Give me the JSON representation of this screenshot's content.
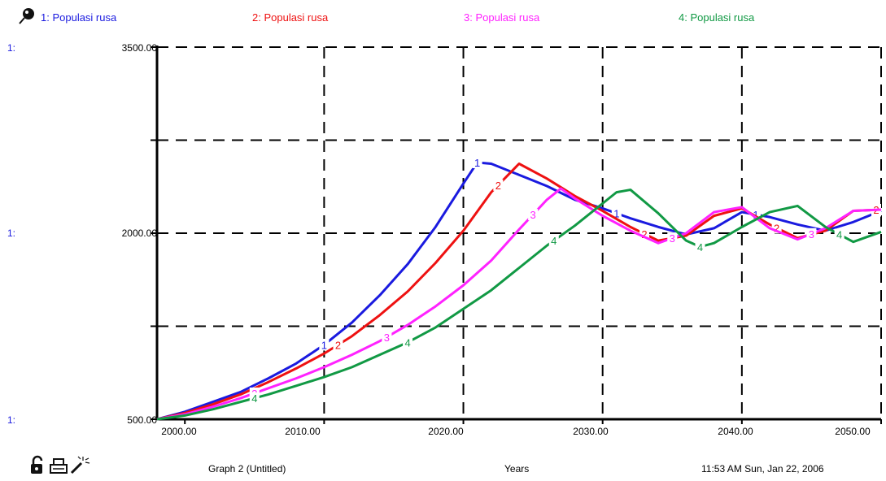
{
  "legend": [
    {
      "label": "1: Populasi rusa",
      "color": "#1a1adf"
    },
    {
      "label": "2: Populasi rusa",
      "color": "#ee1111"
    },
    {
      "label": "3: Populasi rusa",
      "color": "#ff22ff"
    },
    {
      "label": "4: Populasi rusa",
      "color": "#119944"
    }
  ],
  "axis_prefix": "1:",
  "footer": {
    "graph_title": "Graph 2 (Untitled)",
    "x_unit": "Years",
    "timestamp": "11:53 AM   Sun, Jan 22, 2006"
  },
  "icons": [
    "pushpin-icon",
    "lock-icon",
    "print-icon",
    "magic-wand-icon"
  ],
  "chart_data": {
    "type": "line",
    "xlabel": "Years",
    "ylim": [
      500,
      3500
    ],
    "xlim": [
      1998,
      2050
    ],
    "y_ticks": [
      500,
      1250,
      2000,
      2750,
      3500
    ],
    "y_tick_labels": [
      "500.00",
      "",
      "2000.00",
      "",
      "3500.00"
    ],
    "x_ticks": [
      2000,
      2010,
      2020,
      2030,
      2040,
      2050
    ],
    "x_tick_labels": [
      "2000.00",
      "2010.00",
      "2020.00",
      "2030.00",
      "2040.00",
      "2050.00"
    ],
    "grid": true,
    "series": [
      {
        "name": "1: Populasi rusa",
        "marker": "1",
        "color": "#1a1adf",
        "x": [
          1998,
          2000,
          2002,
          2004,
          2006,
          2008,
          2010,
          2012,
          2014,
          2016,
          2018,
          2020,
          2021,
          2022,
          2024,
          2026,
          2028,
          2030,
          2032,
          2034,
          2036,
          2038,
          2040,
          2042,
          2044,
          2046,
          2048,
          2050
        ],
        "y": [
          500,
          560,
          640,
          720,
          830,
          950,
          1100,
          1280,
          1500,
          1750,
          2050,
          2400,
          2570,
          2560,
          2470,
          2380,
          2270,
          2200,
          2120,
          2050,
          1990,
          2040,
          2170,
          2130,
          2070,
          2020,
          2090,
          2180
        ],
        "marker_x": [
          2010,
          2021,
          2031,
          2041,
          2051
        ]
      },
      {
        "name": "2: Populasi rusa",
        "marker": "2",
        "color": "#ee1111",
        "x": [
          1998,
          2000,
          2002,
          2004,
          2006,
          2008,
          2010,
          2012,
          2014,
          2016,
          2018,
          2020,
          2022,
          2024,
          2026,
          2028,
          2030,
          2032,
          2034,
          2036,
          2038,
          2040,
          2042,
          2044,
          2046,
          2048,
          2050
        ],
        "y": [
          500,
          550,
          620,
          700,
          800,
          910,
          1030,
          1170,
          1340,
          1530,
          1760,
          2020,
          2330,
          2560,
          2440,
          2300,
          2180,
          2050,
          1940,
          1980,
          2140,
          2200,
          2070,
          1960,
          2020,
          2180,
          2190
        ],
        "marker_x": [
          2011,
          2022.5,
          2033,
          2042.5,
          2052
        ]
      },
      {
        "name": "3: Populasi rusa",
        "marker": "3",
        "color": "#ff22ff",
        "x": [
          1998,
          2000,
          2002,
          2004,
          2006,
          2008,
          2010,
          2012,
          2014,
          2016,
          2018,
          2020,
          2022,
          2024,
          2026,
          2027,
          2028,
          2030,
          2032,
          2034,
          2036,
          2038,
          2040,
          2042,
          2044,
          2046,
          2048,
          2050
        ],
        "y": [
          500,
          540,
          600,
          670,
          750,
          830,
          920,
          1020,
          1130,
          1260,
          1410,
          1580,
          1780,
          2030,
          2270,
          2360,
          2280,
          2140,
          2020,
          1920,
          2000,
          2170,
          2210,
          2040,
          1950,
          2040,
          2180,
          2190
        ],
        "marker_x": [
          2005,
          2014.5,
          2025,
          2035,
          2045
        ]
      },
      {
        "name": "4: Populasi rusa",
        "marker": "4",
        "color": "#119944",
        "x": [
          1998,
          2000,
          2002,
          2004,
          2006,
          2008,
          2010,
          2012,
          2014,
          2016,
          2018,
          2020,
          2022,
          2024,
          2026,
          2028,
          2030,
          2031,
          2032,
          2034,
          2036,
          2037,
          2038,
          2040,
          2042,
          2044,
          2046,
          2048,
          2050
        ],
        "y": [
          500,
          530,
          580,
          640,
          700,
          770,
          840,
          920,
          1020,
          1120,
          1240,
          1390,
          1540,
          1720,
          1900,
          2060,
          2240,
          2330,
          2350,
          2160,
          1940,
          1890,
          1920,
          2050,
          2170,
          2220,
          2050,
          1930,
          2010
        ],
        "marker_x": [
          2005,
          2016,
          2026.5,
          2037,
          2047
        ]
      }
    ]
  }
}
